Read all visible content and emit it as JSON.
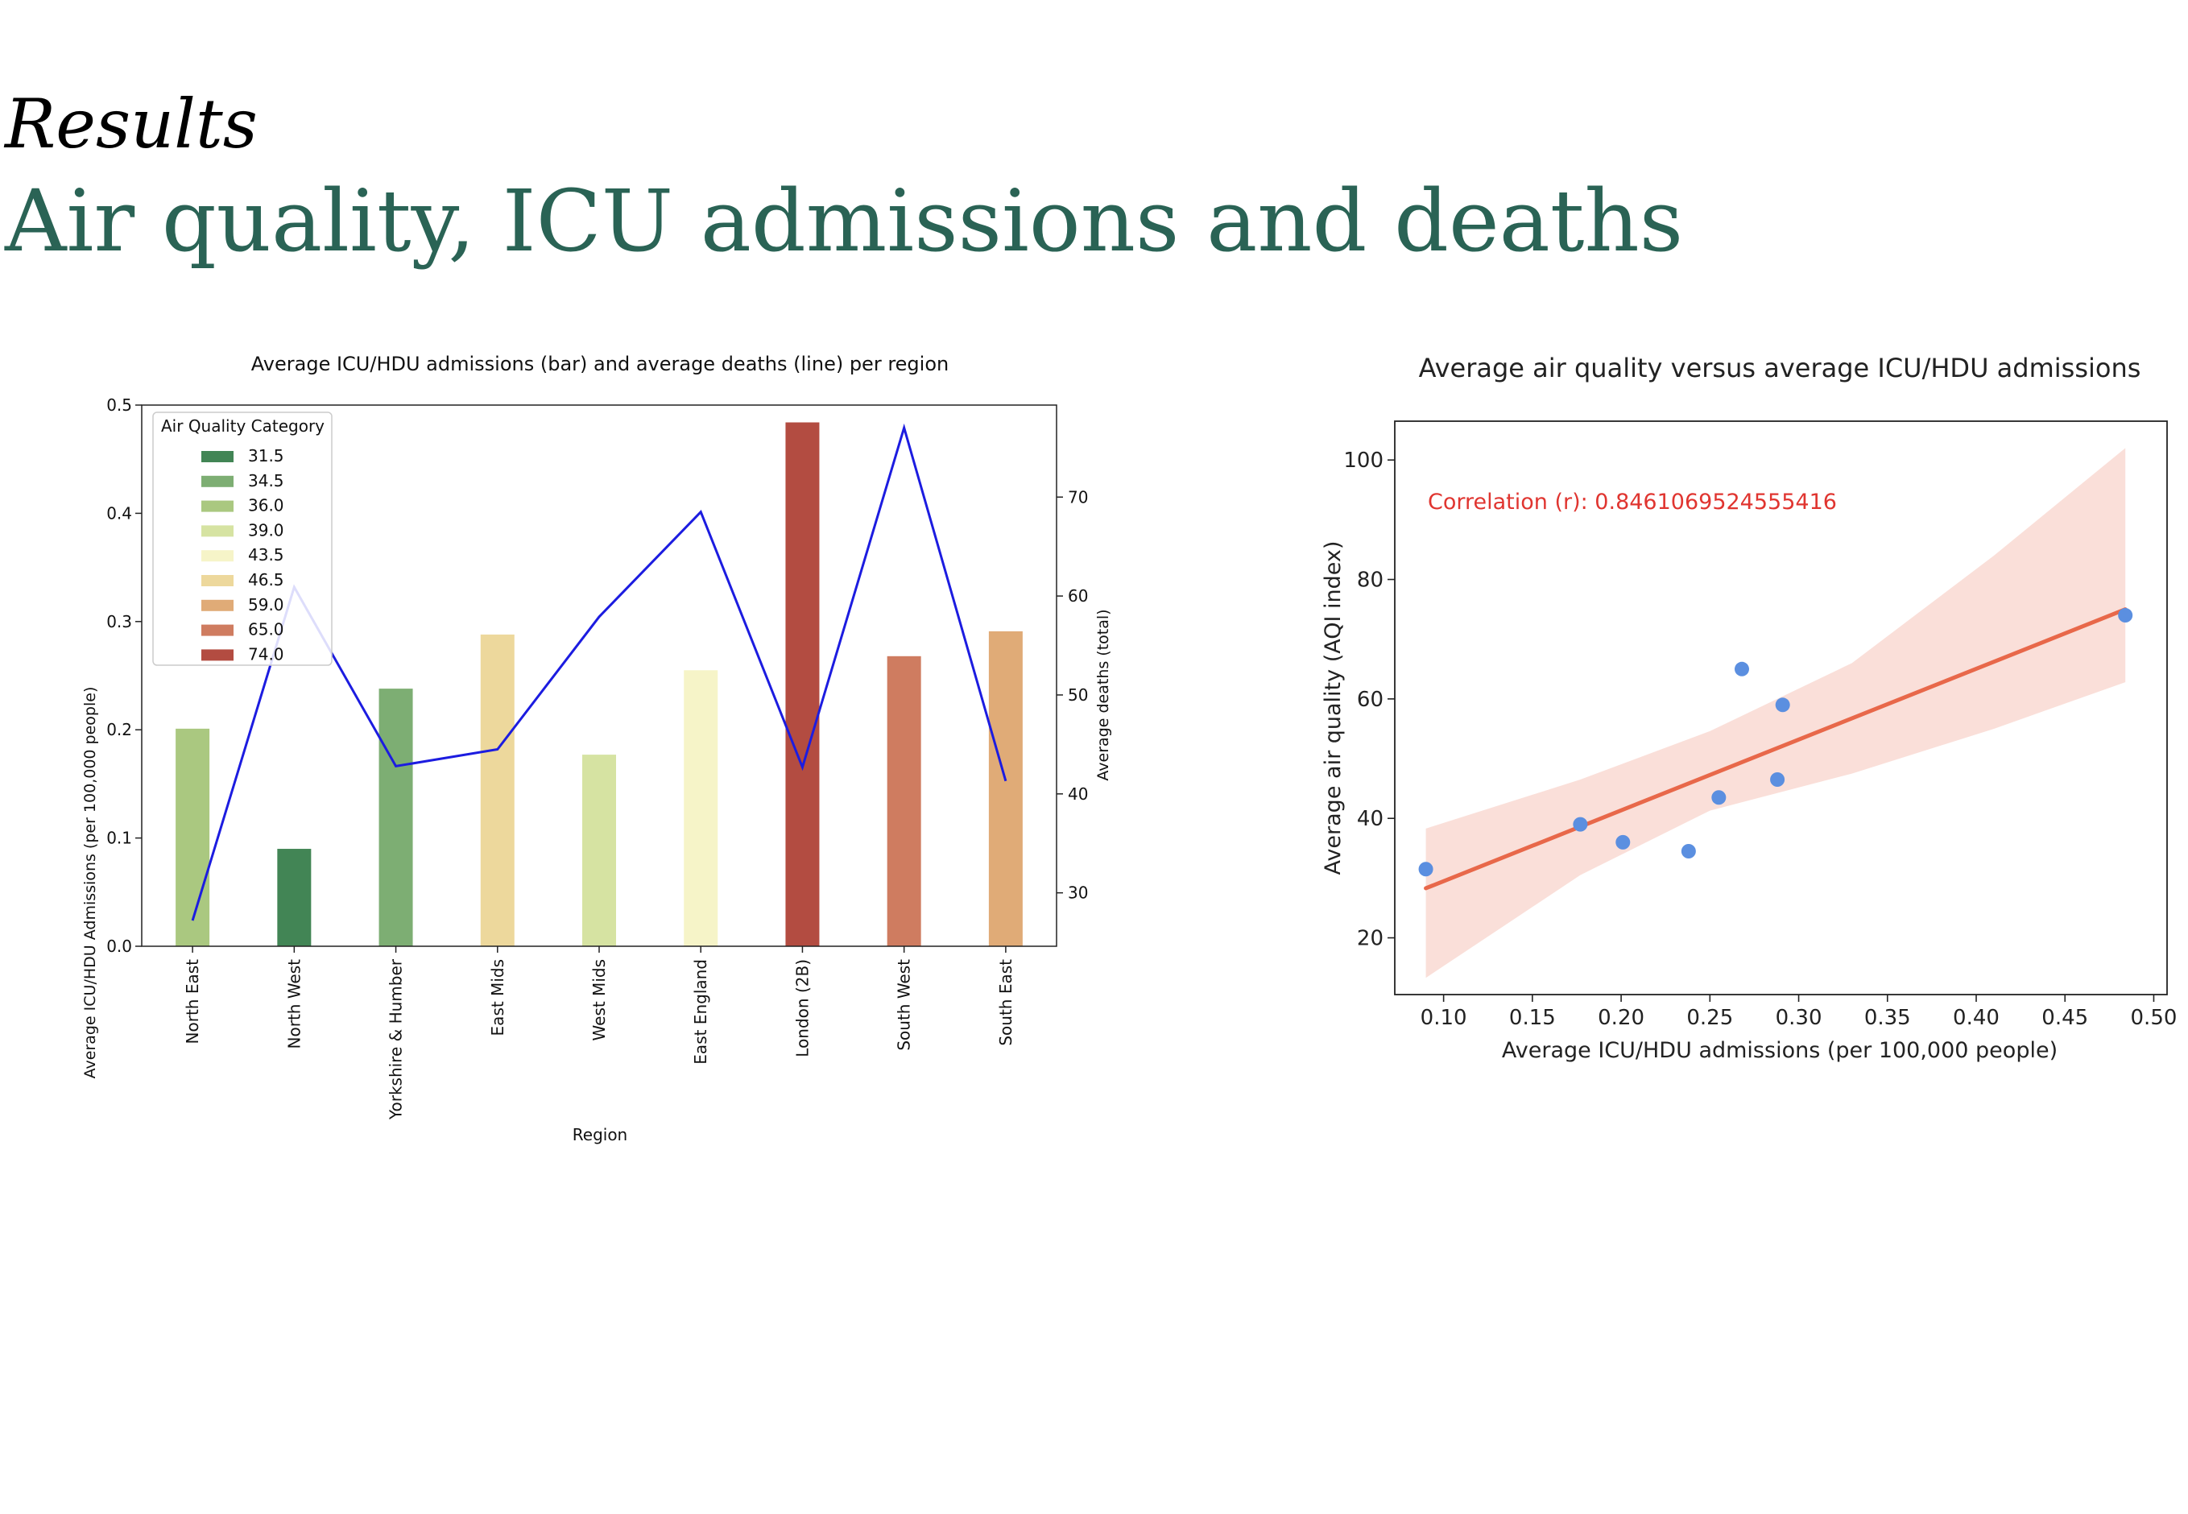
{
  "slide": {
    "kicker": "Results",
    "title": "Air quality, ICU admissions and deaths"
  },
  "chart_data": [
    {
      "type": "bar",
      "title": "Average ICU/HDU admissions (bar) and average deaths (line) per region",
      "xlabel": "Region",
      "ylabel": "Average ICU/HDU Admissions (per 100,000 people)",
      "y2label": "Average deaths (total)",
      "ylim": [
        0,
        0.5
      ],
      "y2lim": [
        24.6,
        79.3
      ],
      "yticks": [
        "0.0",
        "0.1",
        "0.2",
        "0.3",
        "0.4",
        "0.5"
      ],
      "y2ticks": [
        "30",
        "40",
        "50",
        "60",
        "70"
      ],
      "categories": [
        "North East",
        "North West",
        "Yorkshire & Humber",
        "East Mids",
        "West Mids",
        "East England",
        "London (2B)",
        "South West",
        "South East"
      ],
      "series": [
        {
          "kind": "bar",
          "values": [
            0.201,
            0.09,
            0.238,
            0.288,
            0.177,
            0.255,
            0.484,
            0.268,
            0.291
          ],
          "category_values": [
            36.0,
            31.5,
            34.5,
            46.5,
            39.0,
            43.5,
            74.0,
            65.0,
            59.0
          ]
        },
        {
          "kind": "line",
          "axis": "right",
          "color": "#1c1ce0",
          "values": [
            27.2,
            60.9,
            42.8,
            44.5,
            57.9,
            68.5,
            42.7,
            77.0,
            41.3
          ]
        }
      ],
      "legend": {
        "title": "Air Quality Category",
        "placement": "upper-left",
        "items": [
          {
            "label": "31.5",
            "color": "#428555"
          },
          {
            "label": "34.5",
            "color": "#7dae73"
          },
          {
            "label": "36.0",
            "color": "#aac880"
          },
          {
            "label": "39.0",
            "color": "#d6e3a2"
          },
          {
            "label": "43.5",
            "color": "#f6f4c8"
          },
          {
            "label": "46.5",
            "color": "#edd89c"
          },
          {
            "label": "59.0",
            "color": "#e0ab77"
          },
          {
            "label": "65.0",
            "color": "#cf7c60"
          },
          {
            "label": "74.0",
            "color": "#b34c41"
          }
        ]
      }
    },
    {
      "type": "scatter",
      "title": "Average air quality versus average ICU/HDU admissions",
      "xlabel": "Average ICU/HDU admissions (per 100,000 people)",
      "ylabel": "Average air quality (AQI index)",
      "xlim": [
        0.0725,
        0.5075
      ],
      "ylim": [
        10.5,
        106.5
      ],
      "xticks": [
        "0.10",
        "0.15",
        "0.20",
        "0.25",
        "0.30",
        "0.35",
        "0.40",
        "0.45",
        "0.50"
      ],
      "yticks": [
        "20",
        "40",
        "60",
        "80",
        "100"
      ],
      "point_color": "#5b8fe0",
      "points": [
        {
          "x": 0.09,
          "y": 31.5
        },
        {
          "x": 0.177,
          "y": 39.0
        },
        {
          "x": 0.201,
          "y": 36.0
        },
        {
          "x": 0.238,
          "y": 34.5
        },
        {
          "x": 0.255,
          "y": 43.5
        },
        {
          "x": 0.268,
          "y": 65.0
        },
        {
          "x": 0.288,
          "y": 46.5
        },
        {
          "x": 0.291,
          "y": 59.0
        },
        {
          "x": 0.484,
          "y": 74.0
        }
      ],
      "regression": {
        "color": "#e8684a",
        "band_color": "#f6c9c0",
        "line": [
          {
            "x": 0.09,
            "y": 28.3
          },
          {
            "x": 0.484,
            "y": 75.0
          }
        ],
        "band": [
          {
            "x": 0.09,
            "lo": 13.3,
            "hi": 38.3
          },
          {
            "x": 0.177,
            "lo": 30.5,
            "hi": 46.5
          },
          {
            "x": 0.25,
            "lo": 41.3,
            "hi": 54.6
          },
          {
            "x": 0.33,
            "lo": 47.5,
            "hi": 66.0
          },
          {
            "x": 0.41,
            "lo": 55.0,
            "hi": 84.0
          },
          {
            "x": 0.484,
            "lo": 62.8,
            "hi": 102.0
          }
        ]
      },
      "annotation": {
        "text": "Correlation (r): 0.8461069524555416",
        "color": "#e03530"
      }
    }
  ]
}
